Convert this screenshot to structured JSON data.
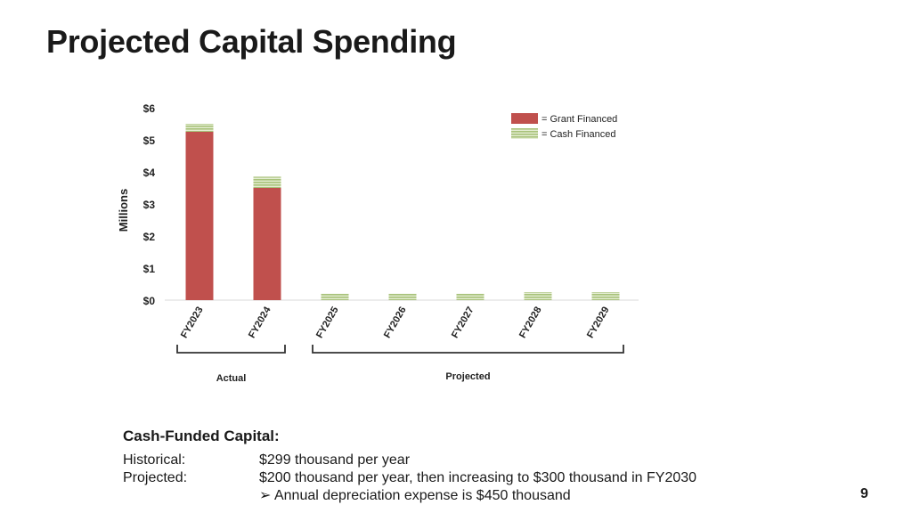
{
  "slide": {
    "title": "Projected Capital Spending",
    "page_number": "9"
  },
  "chart_data": {
    "type": "bar",
    "stacked": true,
    "categories": [
      "FY2023",
      "FY2024",
      "FY2025",
      "FY2026",
      "FY2027",
      "FY2028",
      "FY2029"
    ],
    "series": [
      {
        "name": "= Grant Financed",
        "color": "#c0504d",
        "values": [
          5.25,
          3.5,
          0,
          0,
          0,
          0,
          0
        ]
      },
      {
        "name": "= Cash Financed",
        "color": "#c3d69b",
        "values": [
          0.25,
          0.35,
          0.2,
          0.2,
          0.2,
          0.25,
          0.25
        ]
      }
    ],
    "ylabel": "Millions",
    "ylim": [
      0,
      6
    ],
    "ytick_labels": [
      "$0",
      "$1",
      "$2",
      "$3",
      "$4",
      "$5",
      "$6"
    ],
    "legend_position": "top-right",
    "groups": [
      {
        "label": "Actual",
        "categories": [
          "FY2023",
          "FY2024"
        ]
      },
      {
        "label": "Projected",
        "categories": [
          "FY2025",
          "FY2026",
          "FY2027",
          "FY2028",
          "FY2029"
        ]
      }
    ]
  },
  "notes": {
    "heading": "Cash-Funded Capital:",
    "historical_label": "Historical:",
    "historical_value": "$299 thousand per year",
    "projected_label": "Projected:",
    "projected_value": "$200 thousand per year, then increasing to $300 thousand in FY2030",
    "bullet_marker": "➢",
    "bullet_text": "Annual depreciation expense is $450 thousand"
  }
}
